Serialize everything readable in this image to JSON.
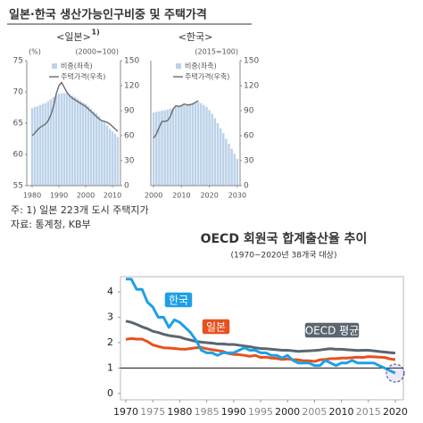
{
  "figure": {
    "title": "일본·한국 생산가능인구비중 및 주택가격",
    "notes": [
      "주: 1) 일본 223개 도시 주택지가",
      "자료: 통계청, KB부"
    ]
  },
  "chart_data": [
    {
      "type": "combo",
      "title": "<일본>",
      "title_sup": "1)",
      "ylabel": "(%)",
      "y2label": "(2000=100)",
      "x": [
        1980,
        1981,
        1982,
        1983,
        1984,
        1985,
        1986,
        1987,
        1988,
        1989,
        1990,
        1991,
        1992,
        1993,
        1994,
        1995,
        1996,
        1997,
        1998,
        1999,
        2000,
        2001,
        2002,
        2003,
        2004,
        2005,
        2006,
        2007,
        2008,
        2009,
        2010,
        2011,
        2012
      ],
      "xlim": [
        1978,
        2013
      ],
      "xticks": [
        1980,
        1990,
        2000,
        2010
      ],
      "ylim": [
        55,
        75
      ],
      "yticks": [
        55,
        60,
        65,
        70,
        75
      ],
      "y2lim": [
        0,
        150
      ],
      "y2ticks": [
        0,
        30,
        60,
        90,
        120,
        150
      ],
      "series": [
        {
          "name": "비중(좌축)",
          "color": "#bcd2ea",
          "kind": "bar",
          "values": [
            67.4,
            67.6,
            67.7,
            67.9,
            68.1,
            68.2,
            68.5,
            68.8,
            69.2,
            69.5,
            69.7,
            69.8,
            69.8,
            69.8,
            69.6,
            69.4,
            69.2,
            68.9,
            68.6,
            68.3,
            68.1,
            67.7,
            67.3,
            66.9,
            66.6,
            66.1,
            65.5,
            65.1,
            64.6,
            64.1,
            63.7,
            63.3,
            62.8
          ]
        },
        {
          "name": "주택가격(우축)",
          "color": "#6b6b6b",
          "kind": "line",
          "axis": "y2",
          "values": [
            60,
            63,
            67,
            70,
            72,
            74,
            78,
            85,
            95,
            110,
            120,
            124,
            118,
            112,
            108,
            105,
            103,
            101,
            99,
            97,
            95,
            92,
            89,
            86,
            83,
            80,
            78,
            77,
            76,
            74,
            71,
            68,
            65
          ]
        }
      ]
    },
    {
      "type": "combo",
      "title": "<한국>",
      "y2label": "(2015=100)",
      "x": [
        2000,
        2001,
        2002,
        2003,
        2004,
        2005,
        2006,
        2007,
        2008,
        2009,
        2010,
        2011,
        2012,
        2013,
        2014,
        2015,
        2016,
        2017,
        2018,
        2019,
        2020,
        2021,
        2022,
        2023,
        2024,
        2025,
        2026,
        2027,
        2028,
        2029,
        2030
      ],
      "xlim": [
        1999,
        2031
      ],
      "xticks": [
        2000,
        2010,
        2020,
        2030
      ],
      "ylim": [
        60,
        80
      ],
      "y2lim": [
        0,
        150
      ],
      "y2ticks": [
        0,
        30,
        60,
        90,
        120,
        150
      ],
      "series": [
        {
          "name": "비중(좌축)",
          "color": "#bcd2ea",
          "kind": "bar",
          "values": [
            71.7,
            71.8,
            71.9,
            72.0,
            72.1,
            72.2,
            72.3,
            72.4,
            72.6,
            72.8,
            72.8,
            72.9,
            73.0,
            73.1,
            73.2,
            73.3,
            73.4,
            73.2,
            72.9,
            72.6,
            72.1,
            71.5,
            70.8,
            70.0,
            69.2,
            68.4,
            67.5,
            66.7,
            65.9,
            65.1,
            64.3
          ]
        },
        {
          "name": "주택가격(우축)",
          "color": "#6b6b6b",
          "kind": "line",
          "axis": "y2",
          "values": [
            57,
            62,
            70,
            77,
            77,
            78,
            83,
            92,
            96,
            95,
            96,
            98,
            97,
            97,
            98,
            100,
            102,
            null,
            null,
            null,
            null,
            null,
            null,
            null,
            null,
            null,
            null,
            null,
            null,
            null,
            null
          ]
        }
      ]
    },
    {
      "type": "line",
      "title": "OECD 회원국 합계출산율 추이",
      "subtitle": "(1970~2020년 38개국 대상)",
      "x": [
        1970,
        1971,
        1972,
        1973,
        1974,
        1975,
        1976,
        1977,
        1978,
        1979,
        1980,
        1981,
        1982,
        1983,
        1984,
        1985,
        1986,
        1987,
        1988,
        1989,
        1990,
        1991,
        1992,
        1993,
        1994,
        1995,
        1996,
        1997,
        1998,
        1999,
        2000,
        2001,
        2002,
        2003,
        2004,
        2005,
        2006,
        2007,
        2008,
        2009,
        2010,
        2011,
        2012,
        2013,
        2014,
        2015,
        2016,
        2017,
        2018,
        2019,
        2020
      ],
      "xlim": [
        1969,
        2021.5
      ],
      "xticks": [
        1970,
        1975,
        1980,
        1985,
        1990,
        1995,
        2000,
        2005,
        2010,
        2015,
        2020
      ],
      "ylim": [
        -0.25,
        4.6
      ],
      "yticks": [
        0,
        1,
        2,
        3,
        4
      ],
      "ref_line": 1,
      "series": [
        {
          "name": "OECD 평균",
          "color": "#5a6670",
          "values": [
            2.85,
            2.8,
            2.72,
            2.62,
            2.55,
            2.45,
            2.4,
            2.33,
            2.28,
            2.25,
            2.22,
            2.15,
            2.1,
            2.05,
            2.02,
            2.0,
            1.98,
            1.95,
            1.95,
            1.93,
            1.93,
            1.9,
            1.87,
            1.84,
            1.8,
            1.77,
            1.76,
            1.74,
            1.72,
            1.7,
            1.7,
            1.68,
            1.66,
            1.67,
            1.68,
            1.69,
            1.71,
            1.74,
            1.76,
            1.74,
            1.74,
            1.72,
            1.71,
            1.69,
            1.7,
            1.7,
            1.68,
            1.65,
            1.63,
            1.61,
            1.59
          ]
        },
        {
          "name": "일본",
          "color": "#e8501e",
          "values": [
            2.13,
            2.16,
            2.14,
            2.14,
            2.05,
            1.91,
            1.85,
            1.8,
            1.79,
            1.77,
            1.75,
            1.74,
            1.77,
            1.8,
            1.81,
            1.76,
            1.72,
            1.69,
            1.66,
            1.57,
            1.54,
            1.53,
            1.5,
            1.46,
            1.5,
            1.42,
            1.43,
            1.39,
            1.38,
            1.34,
            1.36,
            1.33,
            1.32,
            1.29,
            1.29,
            1.26,
            1.32,
            1.34,
            1.37,
            1.37,
            1.39,
            1.39,
            1.41,
            1.43,
            1.42,
            1.45,
            1.44,
            1.43,
            1.42,
            1.36,
            1.33
          ]
        },
        {
          "name": "한국",
          "color": "#1ea0e6",
          "values": [
            4.5,
            4.5,
            4.1,
            4.1,
            3.6,
            3.4,
            3.0,
            3.0,
            2.6,
            2.9,
            2.8,
            2.6,
            2.4,
            2.1,
            1.7,
            1.6,
            1.6,
            1.5,
            1.6,
            1.6,
            1.6,
            1.7,
            1.8,
            1.7,
            1.7,
            1.6,
            1.6,
            1.5,
            1.5,
            1.4,
            1.5,
            1.3,
            1.2,
            1.2,
            1.2,
            1.1,
            1.1,
            1.3,
            1.2,
            1.1,
            1.2,
            1.2,
            1.3,
            1.2,
            1.2,
            1.2,
            1.2,
            1.1,
            1.0,
            0.9,
            0.8
          ]
        }
      ]
    }
  ]
}
